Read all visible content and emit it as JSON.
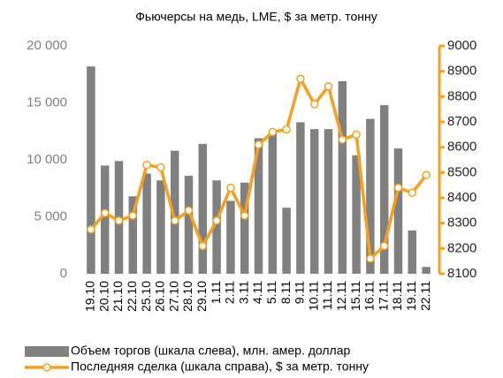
{
  "chart_data": {
    "type": "bar_line",
    "title": "Фьючерсы на медь, LME, $ за метр. тонну",
    "categories": [
      "19.10",
      "20.10",
      "21.10",
      "22.10",
      "25.10",
      "26.10",
      "27.10",
      "28.10",
      "29.10",
      "1.11",
      "2.11",
      "3.11",
      "4.11",
      "5.11",
      "8.11",
      "9.11",
      "10.11",
      "11.11",
      "12.11",
      "15.11",
      "16.11",
      "17.11",
      "18.11",
      "19.11",
      "22.11"
    ],
    "series": [
      {
        "name": "Объем торгов (шкала слева), млн. амер. доллар",
        "type": "bar",
        "color": "#808080",
        "values": [
          18200,
          9500,
          9900,
          6800,
          8800,
          8200,
          10800,
          8600,
          11400,
          8200,
          6400,
          8000,
          11900,
          12300,
          5800,
          13300,
          12700,
          12700,
          16900,
          10400,
          13600,
          14800,
          11000,
          3800,
          600
        ]
      },
      {
        "name": "Последняя сделка (шкала справа), $ за метр. тонну",
        "type": "line",
        "axis": "y2",
        "color": "#f7a01e",
        "values": [
          8275,
          8340,
          8310,
          8330,
          8530,
          8520,
          8310,
          8350,
          8210,
          8310,
          8440,
          8330,
          8610,
          8660,
          8670,
          8870,
          8770,
          8840,
          8630,
          8650,
          8160,
          8210,
          8440,
          8420,
          8490
        ]
      }
    ],
    "ylim": [
      0,
      20000
    ],
    "yticks": [
      0,
      {
        "value": 5000,
        "label": "5 000"
      },
      {
        "value": 10000,
        "label": "10 000"
      },
      {
        "value": 15000,
        "label": "15 000"
      },
      {
        "value": 20000,
        "label": "20 000"
      }
    ],
    "y2lim": [
      8100,
      9000
    ],
    "y2ticks": [
      8100,
      8200,
      8300,
      8400,
      8500,
      8600,
      8700,
      8800,
      8900,
      9000
    ]
  }
}
